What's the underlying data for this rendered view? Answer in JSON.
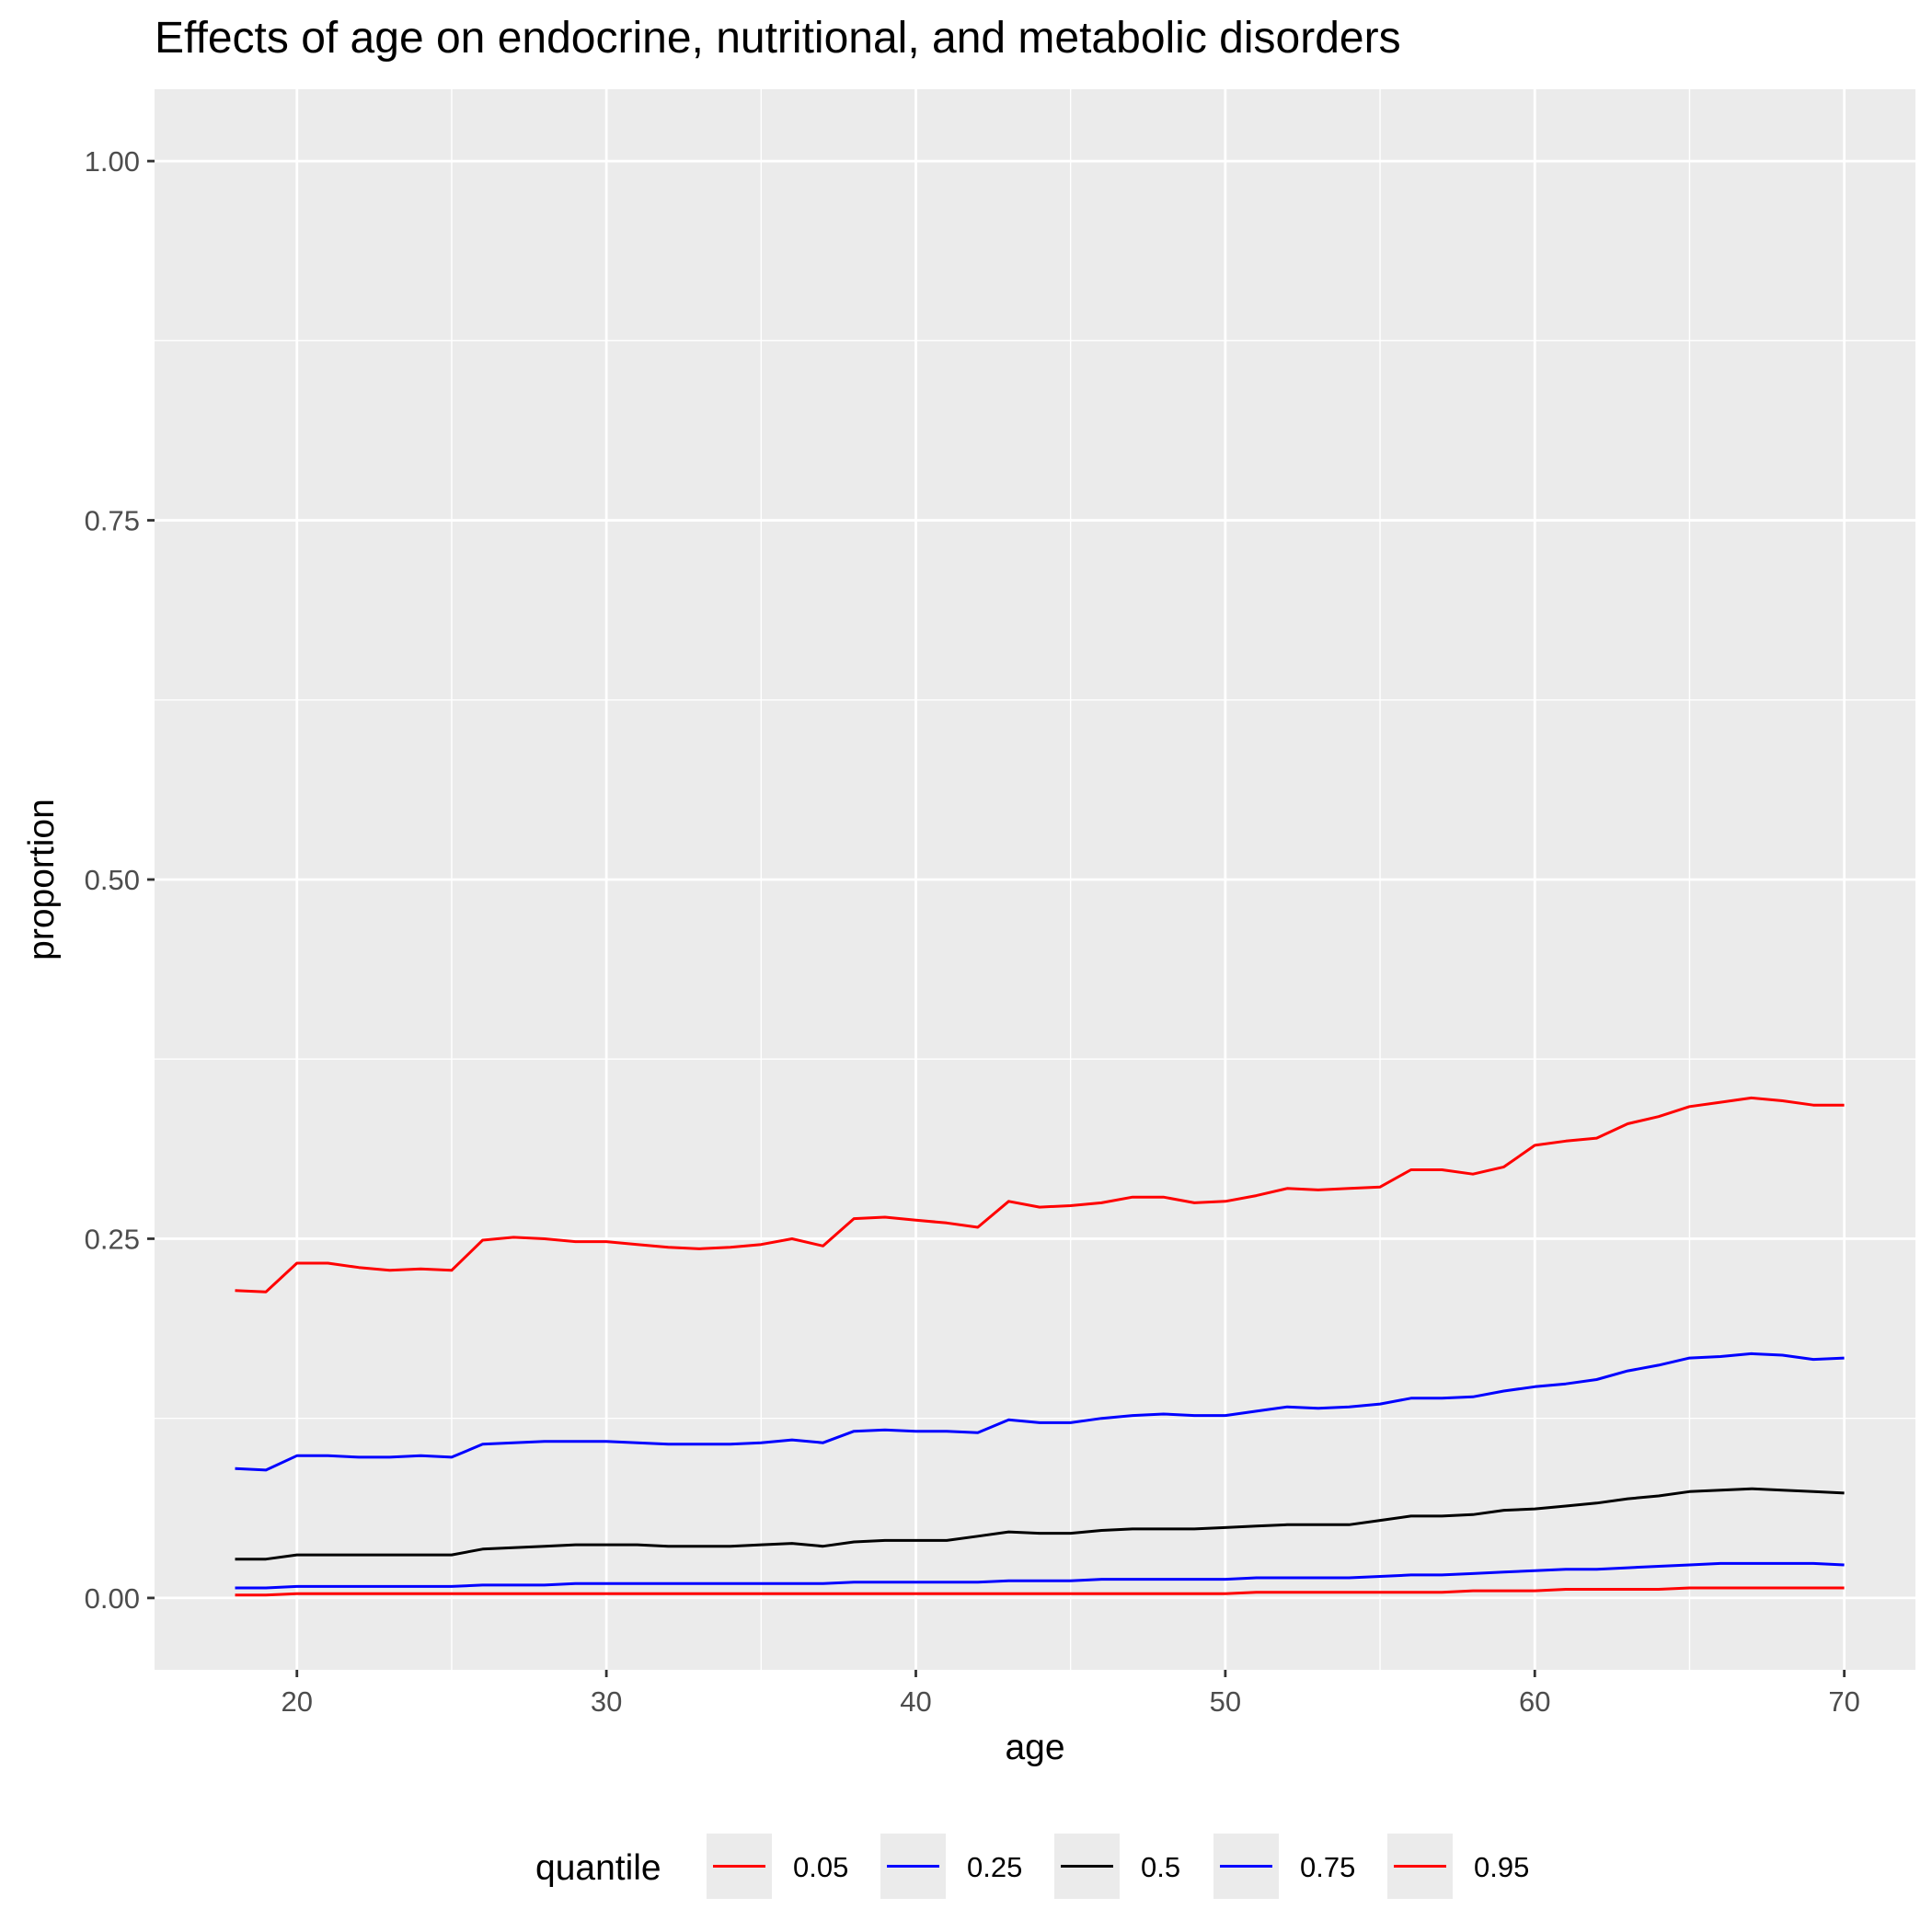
{
  "chart_data": {
    "type": "line",
    "title": "Effects of age on endocrine, nutritional, and metabolic disorders",
    "xlabel": "age",
    "ylabel": "proportion",
    "xlim": [
      15.4,
      72.3
    ],
    "ylim": [
      -0.05,
      1.05
    ],
    "xticks": [
      20,
      30,
      40,
      50,
      60,
      70
    ],
    "xtick_labels": [
      "20",
      "30",
      "40",
      "50",
      "60",
      "70"
    ],
    "yticks": [
      0,
      0.25,
      0.5,
      0.75,
      1
    ],
    "ytick_labels": [
      "0.00",
      "0.25",
      "0.50",
      "0.75",
      "1.00"
    ],
    "grid": true,
    "legend": {
      "title": "quantile",
      "position": "bottom"
    },
    "x": [
      18,
      19,
      20,
      21,
      22,
      23,
      24,
      25,
      26,
      27,
      28,
      29,
      30,
      31,
      32,
      33,
      34,
      35,
      36,
      37,
      38,
      39,
      40,
      41,
      42,
      43,
      44,
      45,
      46,
      47,
      48,
      49,
      50,
      51,
      52,
      53,
      54,
      55,
      56,
      57,
      58,
      59,
      60,
      61,
      62,
      63,
      64,
      65,
      66,
      67,
      68,
      69,
      70
    ],
    "series": [
      {
        "name": "0.05",
        "color": "#ff0000",
        "values": [
          0.002,
          0.002,
          0.003,
          0.003,
          0.003,
          0.003,
          0.003,
          0.003,
          0.003,
          0.003,
          0.003,
          0.003,
          0.003,
          0.003,
          0.003,
          0.003,
          0.003,
          0.003,
          0.003,
          0.003,
          0.003,
          0.003,
          0.003,
          0.003,
          0.003,
          0.003,
          0.003,
          0.003,
          0.003,
          0.003,
          0.003,
          0.003,
          0.003,
          0.004,
          0.004,
          0.004,
          0.004,
          0.004,
          0.004,
          0.004,
          0.005,
          0.005,
          0.005,
          0.006,
          0.006,
          0.006,
          0.006,
          0.007,
          0.007,
          0.007,
          0.007,
          0.007,
          0.007
        ]
      },
      {
        "name": "0.25",
        "color": "#0000ff",
        "values": [
          0.007,
          0.007,
          0.008,
          0.008,
          0.008,
          0.008,
          0.008,
          0.008,
          0.009,
          0.009,
          0.009,
          0.01,
          0.01,
          0.01,
          0.01,
          0.01,
          0.01,
          0.01,
          0.01,
          0.01,
          0.011,
          0.011,
          0.011,
          0.011,
          0.011,
          0.012,
          0.012,
          0.012,
          0.013,
          0.013,
          0.013,
          0.013,
          0.013,
          0.014,
          0.014,
          0.014,
          0.014,
          0.015,
          0.016,
          0.016,
          0.017,
          0.018,
          0.019,
          0.02,
          0.02,
          0.021,
          0.022,
          0.023,
          0.024,
          0.024,
          0.024,
          0.024,
          0.023
        ]
      },
      {
        "name": "0.5",
        "color": "#000000",
        "values": [
          0.027,
          0.027,
          0.03,
          0.03,
          0.03,
          0.03,
          0.03,
          0.03,
          0.034,
          0.035,
          0.036,
          0.037,
          0.037,
          0.037,
          0.036,
          0.036,
          0.036,
          0.037,
          0.038,
          0.036,
          0.039,
          0.04,
          0.04,
          0.04,
          0.043,
          0.046,
          0.045,
          0.045,
          0.047,
          0.048,
          0.048,
          0.048,
          0.049,
          0.05,
          0.051,
          0.051,
          0.051,
          0.054,
          0.057,
          0.057,
          0.058,
          0.061,
          0.062,
          0.064,
          0.066,
          0.069,
          0.071,
          0.074,
          0.075,
          0.076,
          0.075,
          0.074,
          0.073
        ]
      },
      {
        "name": "0.75",
        "color": "#0000ff",
        "values": [
          0.09,
          0.089,
          0.099,
          0.099,
          0.098,
          0.098,
          0.099,
          0.098,
          0.107,
          0.108,
          0.109,
          0.109,
          0.109,
          0.108,
          0.107,
          0.107,
          0.107,
          0.108,
          0.11,
          0.108,
          0.116,
          0.117,
          0.116,
          0.116,
          0.115,
          0.124,
          0.122,
          0.122,
          0.125,
          0.127,
          0.128,
          0.127,
          0.127,
          0.13,
          0.133,
          0.132,
          0.133,
          0.135,
          0.139,
          0.139,
          0.14,
          0.144,
          0.147,
          0.149,
          0.152,
          0.158,
          0.162,
          0.167,
          0.168,
          0.17,
          0.169,
          0.166,
          0.167
        ]
      },
      {
        "name": "0.95",
        "color": "#ff0000",
        "values": [
          0.214,
          0.213,
          0.233,
          0.233,
          0.23,
          0.228,
          0.229,
          0.228,
          0.249,
          0.251,
          0.25,
          0.248,
          0.248,
          0.246,
          0.244,
          0.243,
          0.244,
          0.246,
          0.25,
          0.245,
          0.264,
          0.265,
          0.263,
          0.261,
          0.258,
          0.276,
          0.272,
          0.273,
          0.275,
          0.279,
          0.279,
          0.275,
          0.276,
          0.28,
          0.285,
          0.284,
          0.285,
          0.286,
          0.298,
          0.298,
          0.295,
          0.3,
          0.315,
          0.318,
          0.32,
          0.33,
          0.335,
          0.342,
          0.345,
          0.348,
          0.346,
          0.343,
          0.343
        ]
      }
    ]
  }
}
